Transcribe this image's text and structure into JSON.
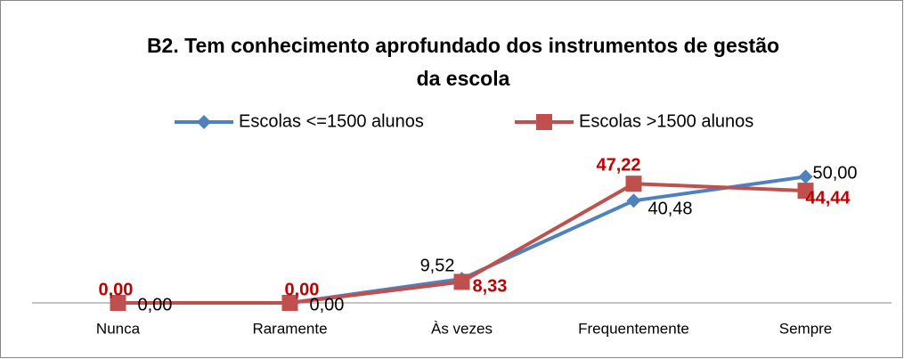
{
  "chart_data": {
    "type": "line",
    "title": [
      "B2. Tem conhecimento aprofundado dos instrumentos de gestão",
      "da escola"
    ],
    "categories": [
      "Nunca",
      "Raramente",
      "Às vezes",
      "Frequentemente",
      "Sempre"
    ],
    "series": [
      {
        "name": "Escolas <=1500 alunos",
        "color": "#4f81bd",
        "marker": "diamond",
        "values": [
          0,
          0,
          9.52,
          40.48,
          50
        ],
        "value_labels": [
          "0,00",
          "0,00",
          "9,52",
          "40,48",
          "50,00"
        ]
      },
      {
        "name": "Escolas >1500 alunos",
        "color": "#c0504d",
        "marker": "square",
        "values": [
          0,
          0,
          8.33,
          47.22,
          44.44
        ],
        "value_labels": [
          "0,00",
          "0,00",
          "8,33",
          "47,22",
          "44,44"
        ]
      }
    ],
    "ylim": [
      0,
      60
    ],
    "legend": "top"
  }
}
